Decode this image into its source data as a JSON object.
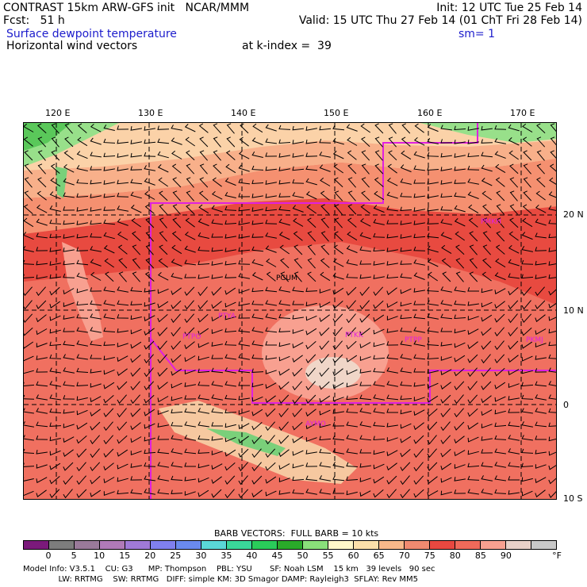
{
  "header": {
    "line1_left": "CONTRAST 15km ARW-GFS init   NCAR/MMM",
    "line1_right": "Init: 12 UTC Tue 25 Feb 14",
    "line2_left": "Fcst:   51 h",
    "line2_right": "Valid: 15 UTC Thu 27 Feb 14 (01 ChT Fri 28 Feb 14)",
    "field1": "Surface dewpoint temperature",
    "sm": "sm= 1",
    "field2": "Horizontal wind vectors",
    "kindex": "at k-index =  39"
  },
  "map": {
    "lon_labels": [
      "120 E",
      "130 E",
      "140 E",
      "150 E",
      "160 E",
      "170 E"
    ],
    "lat_labels": [
      "20 N",
      "10 N",
      "0",
      "10 S"
    ],
    "station_labels": [
      "PGUM",
      "PTPO",
      "PTYA",
      "PTKK",
      "PTPP",
      "PKMJ",
      "PMKH",
      "AYMO"
    ]
  },
  "colorbar": {
    "title": "BARB VECTORS:  FULL BARB = 10 kts",
    "ticks": [
      "0",
      "5",
      "10",
      "15",
      "20",
      "25",
      "30",
      "35",
      "40",
      "45",
      "50",
      "55",
      "60",
      "65",
      "70",
      "75",
      "80",
      "85",
      "90"
    ],
    "unit": "°F",
    "colors": [
      "#7b1a7b",
      "#7d7d7d",
      "#9a7a9a",
      "#b07ab8",
      "#a07ad8",
      "#8080ee",
      "#6a8aee",
      "#5ad8d8",
      "#3ad89a",
      "#2acc5a",
      "#2aaa2a",
      "#8ae07a",
      "#fff7c8",
      "#fce0aa",
      "#f8b88a",
      "#f08a70",
      "#e84840",
      "#f06a5a",
      "#f8a090",
      "#e8d0c8",
      "#c8c8c8"
    ]
  },
  "footer": {
    "line1": "Model Info: V3.5.1    CU: G3      MP: Thompson    PBL: YSU       SF: Noah LSM    15 km   39 levels   90 sec",
    "line2": "              LW: RRTMG    SW: RRTMG   DIFF: simple KM: 3D Smagor DAMP: Rayleigh3  SFLAY: Rev MM5"
  }
}
